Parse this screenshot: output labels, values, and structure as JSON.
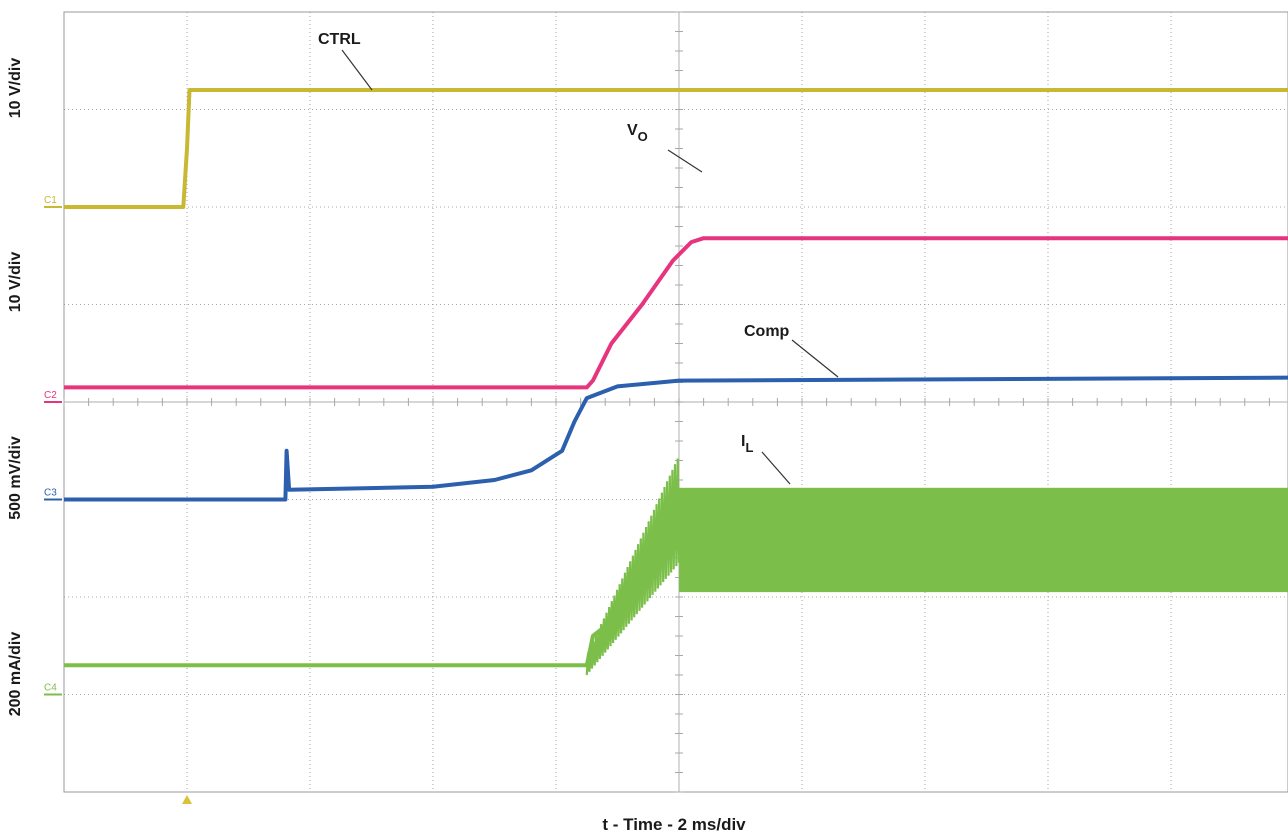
{
  "chart_data": {
    "type": "line",
    "xlabel": "t - Time - 2 ms/div",
    "x_unit": "div",
    "xlim": [
      0,
      10
    ],
    "ylim_div": [
      0,
      8
    ],
    "trigger_marker": {
      "x": 1,
      "color": "#d8c23a"
    },
    "grid": true,
    "series": [
      {
        "channel": "C1",
        "color": "#c8b832",
        "scale_label": "10 V/div",
        "annotation": "CTRL",
        "reference_div": 6.0,
        "points": [
          [
            0,
            6.0
          ],
          [
            0.97,
            6.0
          ],
          [
            1.0,
            6.6
          ],
          [
            1.02,
            7.2
          ],
          [
            10,
            7.2
          ]
        ]
      },
      {
        "channel": "C2",
        "color": "#e6347e",
        "scale_label": "10 V/div",
        "annotation": "V",
        "annotation_sub": "O",
        "reference_div": 4.0,
        "points": [
          [
            0,
            4.15
          ],
          [
            4.25,
            4.15
          ],
          [
            4.3,
            4.22
          ],
          [
            4.45,
            4.6
          ],
          [
            4.7,
            5.0
          ],
          [
            4.95,
            5.45
          ],
          [
            5.1,
            5.64
          ],
          [
            5.2,
            5.68
          ],
          [
            10,
            5.68
          ]
        ]
      },
      {
        "channel": "C3",
        "color": "#2c5fae",
        "scale_label": "500 mV/div",
        "annotation": "Comp",
        "reference_div": 3.0,
        "points": [
          [
            0,
            3.0
          ],
          [
            1.8,
            3.0
          ],
          [
            1.81,
            3.5
          ],
          [
            1.83,
            3.1
          ],
          [
            3.0,
            3.13
          ],
          [
            3.5,
            3.2
          ],
          [
            3.8,
            3.3
          ],
          [
            4.05,
            3.5
          ],
          [
            4.15,
            3.8
          ],
          [
            4.25,
            4.04
          ],
          [
            4.5,
            4.16
          ],
          [
            5.0,
            4.22
          ],
          [
            10,
            4.25
          ]
        ]
      },
      {
        "channel": "C4",
        "color": "#7bbf4a",
        "scale_label": "200 mA/div",
        "annotation": "I",
        "annotation_sub": "L",
        "reference_div": 1.0,
        "points": [
          [
            0,
            1.3
          ],
          [
            4.25,
            1.3
          ],
          [
            4.3,
            1.6
          ],
          [
            4.6,
            1.9
          ],
          [
            4.85,
            2.3
          ],
          [
            5.0,
            2.9
          ],
          [
            10,
            2.9
          ]
        ],
        "band": {
          "x_start": 5.0,
          "x_end": 10,
          "y_low": 2.05,
          "y_high": 3.12
        }
      }
    ]
  }
}
